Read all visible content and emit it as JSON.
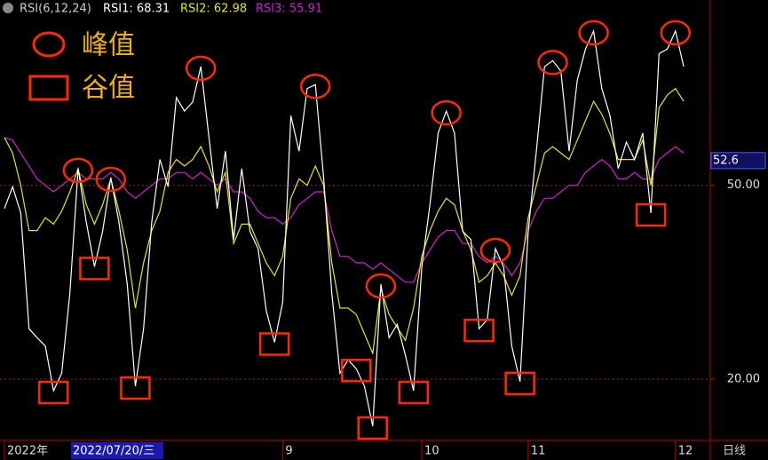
{
  "chart_data": {
    "type": "line",
    "indicator": "RSI(6,12,24)",
    "series": [
      {
        "name": "RSI1: 68.31",
        "color": "#ffffff",
        "values": [
          46.4,
          49.8,
          45.7,
          27.8,
          26.4,
          25.1,
          18.2,
          20.9,
          33.3,
          52.6,
          44.3,
          37.4,
          42.9,
          51.2,
          44.3,
          34.7,
          18.9,
          27.8,
          44.3,
          54.0,
          49.8,
          63.6,
          61.5,
          62.9,
          68.4,
          57.4,
          46.4,
          55.3,
          41.6,
          52.6,
          42.9,
          40.2,
          30.6,
          25.7,
          31.9,
          60.8,
          55.3,
          65.0,
          65.6,
          51.2,
          33.3,
          20.9,
          23.0,
          21.6,
          18.9,
          12.7,
          34.7,
          26.4,
          28.5,
          23.7,
          18.2,
          37.4,
          47.1,
          58.1,
          61.5,
          58.1,
          42.9,
          41.6,
          27.8,
          29.2,
          40.2,
          37.4,
          25.1,
          19.6,
          42.9,
          55.3,
          68.4,
          69.3,
          67.7,
          55.3,
          66.3,
          71.1,
          73.9,
          65.0,
          60.8,
          52.6,
          56.7,
          54.0,
          58.1,
          45.7,
          70.4,
          71.1,
          73.9,
          68.4
        ]
      },
      {
        "name": "RSI2: 62.98",
        "color": "#e8e800",
        "values": [
          57.4,
          55,
          50,
          43,
          43,
          45,
          44,
          46,
          49,
          52.6,
          47,
          44,
          47,
          51,
          46,
          40,
          31,
          38,
          43,
          46,
          52,
          54,
          53,
          54,
          56,
          53,
          49,
          52,
          41,
          44,
          44,
          41,
          38,
          36,
          39,
          48,
          51,
          50,
          53,
          50,
          38,
          31,
          31,
          30,
          27,
          24,
          34,
          30,
          28,
          26,
          31,
          39,
          43,
          46,
          48,
          47,
          43,
          40,
          35,
          36,
          38,
          36,
          33,
          36,
          45,
          50,
          55,
          56,
          55,
          54,
          57,
          60,
          63,
          61,
          58,
          54,
          54,
          54,
          57,
          50,
          62,
          64,
          65,
          63
        ]
      },
      {
        "name": "RSI3: 55.91",
        "color": "#d020d0",
        "values": [
          57.4,
          57,
          55,
          53,
          51,
          50,
          49,
          50,
          51,
          52,
          51,
          51,
          51,
          52,
          51,
          49,
          48,
          49,
          50,
          51,
          51,
          52,
          52,
          51,
          52,
          51,
          50,
          51,
          49,
          49,
          48,
          46,
          45,
          45,
          44,
          45,
          47,
          48,
          49,
          49,
          43,
          39,
          39,
          38,
          38,
          37,
          38,
          37,
          36,
          35,
          35,
          38,
          40,
          42,
          43,
          43,
          41,
          41,
          39,
          38,
          39,
          38,
          36,
          38,
          43,
          46,
          48,
          48,
          49,
          50,
          50,
          52,
          53,
          54,
          53,
          51,
          51,
          52,
          51,
          51,
          54,
          55,
          56,
          55
        ]
      }
    ],
    "categories": [
      "2022年",
      null,
      null,
      null,
      null,
      null,
      null,
      null,
      null,
      null,
      null,
      null,
      null,
      null,
      null,
      null,
      null,
      null,
      null,
      null,
      null,
      null,
      null,
      null,
      null,
      null,
      null,
      null,
      null,
      null,
      null,
      null,
      null,
      null,
      "9",
      null,
      null,
      null,
      null,
      null,
      null,
      null,
      null,
      null,
      null,
      null,
      null,
      null,
      null,
      null,
      null,
      "10",
      null,
      null,
      null,
      null,
      null,
      null,
      null,
      null,
      null,
      null,
      null,
      null,
      "11",
      null,
      null,
      null,
      null,
      null,
      null,
      null,
      null,
      null,
      null,
      null,
      null,
      null,
      null,
      null,
      null,
      null,
      "12",
      null
    ],
    "cursor_date": "2022/07/20/三",
    "period": "日线",
    "current_value": 52.6,
    "legend": {
      "peak": "峰值",
      "trough": "谷值"
    },
    "ylim": [
      10.5,
      78.7
    ],
    "yticks": [
      {
        "value": 50,
        "label": "50.00"
      },
      {
        "value": 20,
        "label": "20.00"
      }
    ],
    "grid": true
  }
}
